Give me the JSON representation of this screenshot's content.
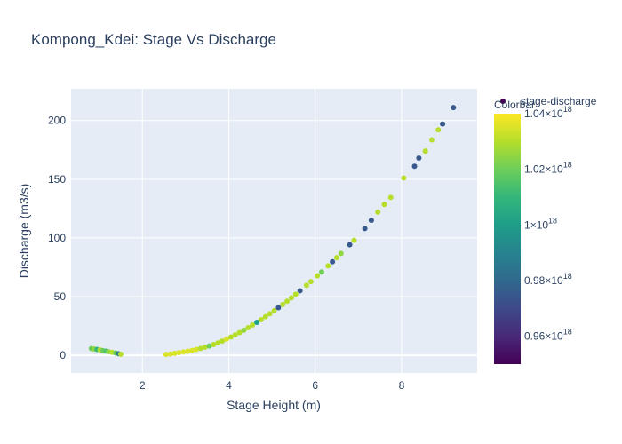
{
  "chart_data": {
    "type": "scatter",
    "title": "Kompong_Kdei: Stage Vs Discharge",
    "xlabel": "Stage Height (m)",
    "ylabel": "Discharge (m3/s)",
    "xlim": [
      0.35,
      9.75
    ],
    "ylim": [
      -15,
      227
    ],
    "x_ticks": [
      2,
      4,
      6,
      8
    ],
    "y_ticks": [
      0,
      50,
      100,
      150,
      200
    ],
    "grid": true,
    "legend": {
      "entries": [
        "stage-discharge"
      ],
      "position": "top-right"
    },
    "colorbar": {
      "title": "Colorbar",
      "colorscale": "Viridis",
      "range": [
        9.5e+17,
        1.04e+18
      ],
      "ticks": [
        {
          "value": 9.6e+17,
          "mantissa": "0.96",
          "exp": "18"
        },
        {
          "value": 9.8e+17,
          "mantissa": "0.98",
          "exp": "18"
        },
        {
          "value": 1e+18,
          "mantissa": "1",
          "exp": "18"
        },
        {
          "value": 1.02e+18,
          "mantissa": "1.02",
          "exp": "18"
        },
        {
          "value": 1.04e+18,
          "mantissa": "1.04",
          "exp": "18"
        }
      ]
    },
    "series": [
      {
        "name": "stage-discharge",
        "points": [
          [
            0.82,
            5.8,
            1.02e+18
          ],
          [
            0.88,
            5.4,
            1.025e+18
          ],
          [
            0.95,
            5.0,
            1.01e+18
          ],
          [
            1.02,
            4.6,
            1.03e+18
          ],
          [
            1.08,
            4.1,
            1.02e+18
          ],
          [
            1.15,
            3.6,
            1.015e+18
          ],
          [
            1.22,
            3.1,
            1.025e+18
          ],
          [
            1.3,
            2.6,
            1.03e+18
          ],
          [
            1.38,
            2.0,
            1.02e+18
          ],
          [
            1.45,
            1.4,
            9.9e+17
          ],
          [
            1.5,
            1.0,
            1.03e+18
          ],
          [
            2.55,
            0.8,
            1.035e+18
          ],
          [
            2.65,
            1.2,
            1.035e+18
          ],
          [
            2.75,
            1.7,
            1.035e+18
          ],
          [
            2.85,
            2.3,
            1.035e+18
          ],
          [
            2.95,
            2.9,
            1.035e+18
          ],
          [
            3.05,
            3.5,
            1.035e+18
          ],
          [
            3.15,
            4.2,
            1.035e+18
          ],
          [
            3.25,
            5.0,
            1.035e+18
          ],
          [
            3.35,
            5.9,
            1.03e+18
          ],
          [
            3.45,
            6.9,
            1.03e+18
          ],
          [
            3.55,
            8.0,
            1.02e+18
          ],
          [
            3.65,
            9.2,
            1.03e+18
          ],
          [
            3.75,
            10.6,
            1.03e+18
          ],
          [
            3.85,
            12.1,
            1.03e+18
          ],
          [
            3.95,
            13.8,
            1.035e+18
          ],
          [
            4.05,
            15.6,
            1.03e+18
          ],
          [
            4.15,
            17.4,
            1.03e+18
          ],
          [
            4.25,
            19.4,
            1.03e+18
          ],
          [
            4.35,
            21.4,
            1.025e+18
          ],
          [
            4.45,
            23.6,
            1.03e+18
          ],
          [
            4.55,
            25.8,
            1.03e+18
          ],
          [
            4.65,
            28.1,
            1e+18
          ],
          [
            4.75,
            30.4,
            1.03e+18
          ],
          [
            4.85,
            32.9,
            1.03e+18
          ],
          [
            4.95,
            35.4,
            1.03e+18
          ],
          [
            5.05,
            38.0,
            1.03e+18
          ],
          [
            5.15,
            40.6,
            9.75e+17
          ],
          [
            5.25,
            43.3,
            1.03e+18
          ],
          [
            5.35,
            46.1,
            1.03e+18
          ],
          [
            5.45,
            49.0,
            1.03e+18
          ],
          [
            5.55,
            52.0,
            1.03e+18
          ],
          [
            5.65,
            55.0,
            9.75e+17
          ],
          [
            5.8,
            59.6,
            1.03e+18
          ],
          [
            5.9,
            62.8,
            1.03e+18
          ],
          [
            6.05,
            67.7,
            1.03e+18
          ],
          [
            6.15,
            71.0,
            1.02e+18
          ],
          [
            6.3,
            76.2,
            1.03e+18
          ],
          [
            6.4,
            79.7,
            9.75e+17
          ],
          [
            6.5,
            83.2,
            1.03e+18
          ],
          [
            6.6,
            86.8,
            1.025e+18
          ],
          [
            6.8,
            94.2,
            9.75e+17
          ],
          [
            6.9,
            98.0,
            1.03e+18
          ],
          [
            7.15,
            108.0,
            9.75e+17
          ],
          [
            7.3,
            115.0,
            9.75e+17
          ],
          [
            7.45,
            122.0,
            1.03e+18
          ],
          [
            7.6,
            128.5,
            1.03e+18
          ],
          [
            7.75,
            134.5,
            1.03e+18
          ],
          [
            8.05,
            151.0,
            1.03e+18
          ],
          [
            8.3,
            161.0,
            9.75e+17
          ],
          [
            8.4,
            168.0,
            9.75e+17
          ],
          [
            8.55,
            174.0,
            1.03e+18
          ],
          [
            8.7,
            183.5,
            1.03e+18
          ],
          [
            8.85,
            192.0,
            1.03e+18
          ],
          [
            8.95,
            197.0,
            9.75e+17
          ],
          [
            9.2,
            211.0,
            9.75e+17
          ]
        ]
      }
    ]
  }
}
